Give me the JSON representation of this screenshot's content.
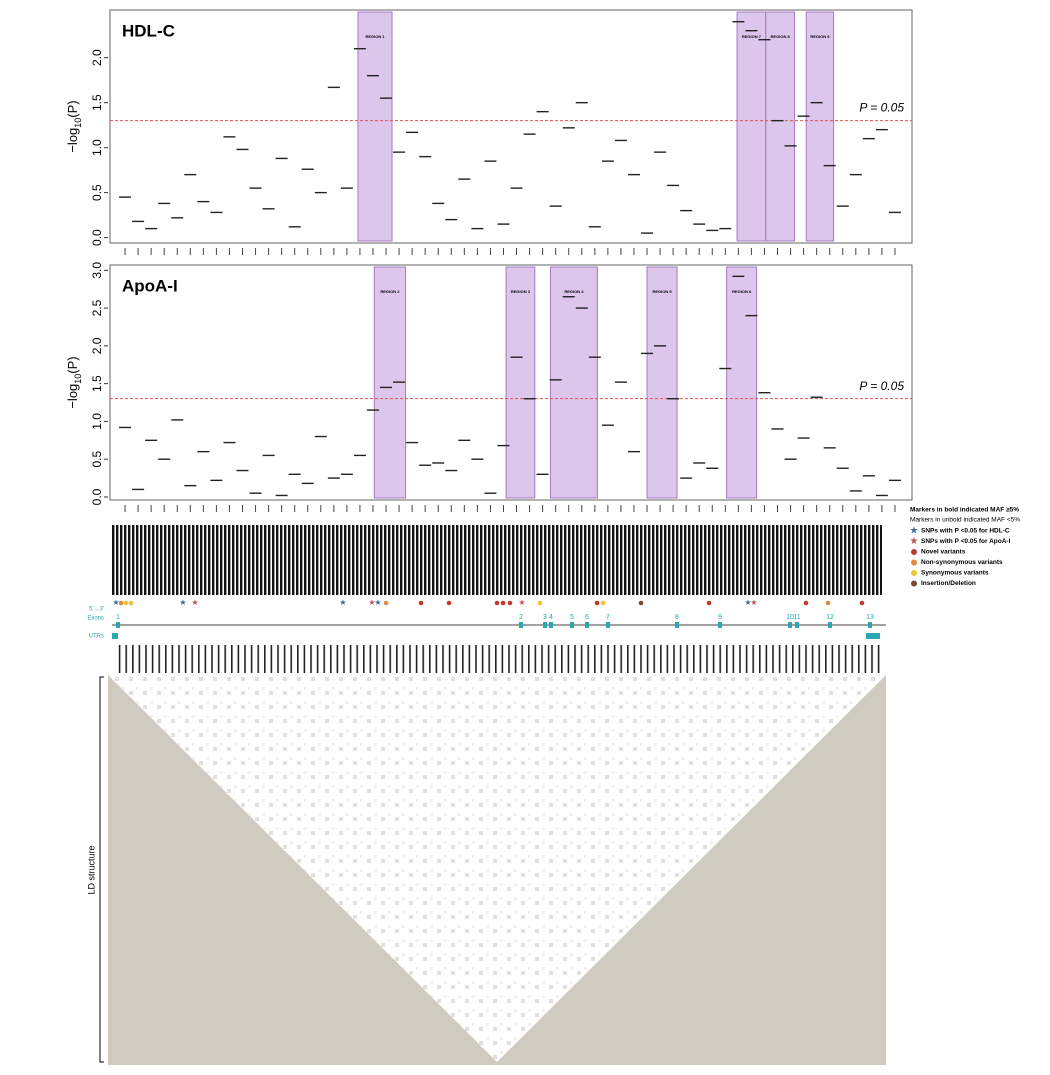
{
  "chart_data": [
    {
      "type": "segment",
      "title": "HDL-C",
      "ylabel": [
        "−log",
        "10",
        "(P)"
      ],
      "x": [
        1,
        2,
        3,
        4,
        5,
        6,
        7,
        8,
        9,
        10,
        11,
        12,
        13,
        14,
        15,
        16,
        17,
        18,
        19,
        20,
        21,
        22,
        23,
        24,
        25,
        26,
        27,
        28,
        29,
        30,
        31,
        32,
        33,
        34,
        35,
        36,
        37,
        38,
        39,
        40,
        41,
        42,
        43,
        44,
        45,
        46,
        47,
        48,
        49,
        50,
        51,
        52,
        53,
        54,
        55,
        56,
        57,
        58,
        59,
        60
      ],
      "values": [
        0.45,
        0.18,
        0.1,
        0.38,
        0.22,
        0.7,
        0.4,
        0.28,
        1.12,
        0.98,
        0.55,
        0.32,
        0.88,
        0.12,
        0.76,
        0.5,
        1.67,
        0.55,
        2.1,
        1.8,
        1.55,
        0.95,
        1.17,
        0.9,
        0.38,
        0.2,
        0.65,
        0.1,
        0.85,
        0.15,
        0.55,
        1.15,
        1.4,
        0.35,
        1.22,
        1.5,
        0.12,
        0.85,
        1.08,
        0.7,
        0.05,
        0.95,
        0.58,
        0.3,
        0.15,
        0.08,
        0.1,
        2.4,
        2.3,
        2.2,
        1.3,
        1.02,
        1.35,
        1.5,
        0.8,
        0.35,
        0.7,
        1.1,
        1.2,
        0.28
      ],
      "color": "#222222",
      "xlim": [
        0,
        61
      ],
      "ylim": [
        -0.06,
        2.53
      ],
      "yticks": [
        {
          "value": 0,
          "label": "0.0"
        },
        0.5,
        {
          "value": 1,
          "label": "1.0"
        },
        1.5,
        {
          "value": 2,
          "label": "2.0"
        }
      ],
      "threshold": 1.301,
      "threshold_label": "P = 0.05",
      "threshold_color": "#e05050",
      "region_color": "#dcc6ec",
      "regions": [
        {
          "label": "REGION 1",
          "start": 18.85,
          "end": 21.46
        },
        {
          "label": "REGION 7",
          "start": 47.9,
          "end": 50.1
        },
        {
          "label": "REGION 8",
          "start": 50.1,
          "end": 52.3
        },
        {
          "label": "REGION 9",
          "start": 53.2,
          "end": 55.3
        }
      ]
    },
    {
      "type": "segment",
      "title": "ApoA-I",
      "ylabel": [
        "−log",
        "10",
        "(P)"
      ],
      "x": [
        1,
        2,
        3,
        4,
        5,
        6,
        7,
        8,
        9,
        10,
        11,
        12,
        13,
        14,
        15,
        16,
        17,
        18,
        19,
        20,
        21,
        22,
        23,
        24,
        25,
        26,
        27,
        28,
        29,
        30,
        31,
        32,
        33,
        34,
        35,
        36,
        37,
        38,
        39,
        40,
        41,
        42,
        43,
        44,
        45,
        46,
        47,
        48,
        49,
        50,
        51,
        52,
        53,
        54,
        55,
        56,
        57,
        58,
        59,
        60
      ],
      "values": [
        0.92,
        0.1,
        0.75,
        0.5,
        1.02,
        0.15,
        0.6,
        0.22,
        0.72,
        0.35,
        0.05,
        0.55,
        0.02,
        0.3,
        0.18,
        0.8,
        0.25,
        0.3,
        0.55,
        1.15,
        1.45,
        1.52,
        0.72,
        0.42,
        0.45,
        0.35,
        0.75,
        0.5,
        0.05,
        0.68,
        1.85,
        1.3,
        0.3,
        1.55,
        2.65,
        2.5,
        1.85,
        0.95,
        1.52,
        0.6,
        1.9,
        2.0,
        1.3,
        0.25,
        0.45,
        0.38,
        1.7,
        2.92,
        2.4,
        1.38,
        0.9,
        0.5,
        0.78,
        1.32,
        0.65,
        0.38,
        0.08,
        0.28,
        0.02,
        0.22
      ],
      "color": "#222222",
      "xlim": [
        0,
        61
      ],
      "ylim": [
        -0.04,
        3.07
      ],
      "yticks": [
        {
          "value": 0,
          "label": "0.0"
        },
        0.5,
        {
          "value": 1,
          "label": "1.0"
        },
        1.5,
        {
          "value": 2,
          "label": "2.0"
        },
        2.5,
        {
          "value": 3,
          "label": "3.0"
        }
      ],
      "threshold": 1.301,
      "threshold_label": "P = 0.05",
      "threshold_color": "#e05050",
      "region_color": "#dcc6ec",
      "regions": [
        {
          "label": "REGION 2",
          "start": 20.1,
          "end": 22.5
        },
        {
          "label": "REGION 3",
          "start": 30.2,
          "end": 32.4
        },
        {
          "label": "REGION 4",
          "start": 33.6,
          "end": 37.2
        },
        {
          "label": "REGION 5",
          "start": 41.0,
          "end": 43.3
        },
        {
          "label": "REGION 6",
          "start": 47.1,
          "end": 49.4
        }
      ]
    }
  ],
  "legend": {
    "bold_note": "Markers in bold indicated MAF ≥5%",
    "unbold_note": "Markers in unbold indicated MAF <5%",
    "items": [
      {
        "label": "SNPs with P <0.05 for HDL-C",
        "shape": "star",
        "color": "#3a6ea5"
      },
      {
        "label": "SNPs with P <0.05 for ApoA-I",
        "shape": "star",
        "color": "#c0504d"
      },
      {
        "label": "Novel variants",
        "shape": "dot",
        "color": "#c0392b"
      },
      {
        "label": "Non-synonymous variants",
        "shape": "dot",
        "color": "#e08a3c"
      },
      {
        "label": "Synonymous variants",
        "shape": "dot",
        "color": "#f1c232"
      },
      {
        "label": "Insertion/Deletion",
        "shape": "dot",
        "color": "#7b4a2a"
      }
    ]
  },
  "gene_track": {
    "direction": "5'→3'",
    "exons_label": "Exons",
    "utrs_label": "UTRs",
    "exons": [
      "1",
      "2",
      "3",
      "4",
      "5",
      "6",
      "7",
      "8",
      "9",
      "10",
      "11",
      "12",
      "13"
    ]
  },
  "ld_label": "LD structure"
}
